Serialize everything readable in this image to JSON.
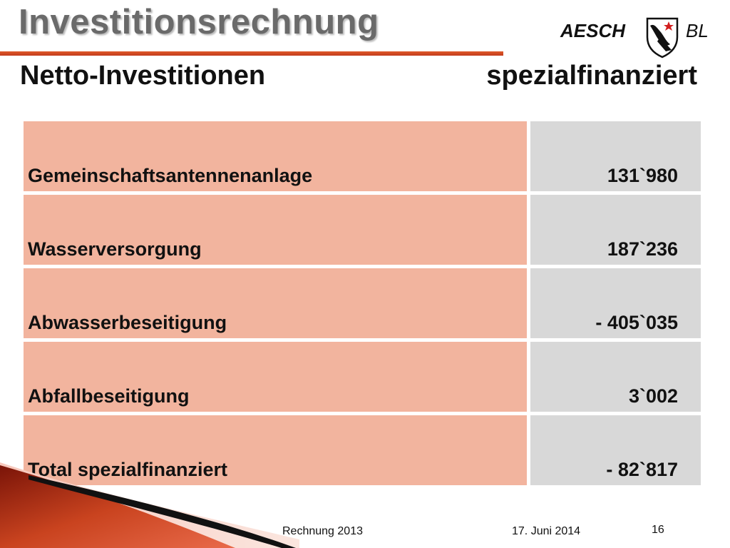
{
  "title": "Investitionsrechnung",
  "logo": {
    "left_text": "AESCH",
    "right_text": "BL",
    "shield_icon": "coat-of-arms-icon"
  },
  "subtitle": {
    "left": "Netto-Investitionen",
    "right": "spezialfinanziert"
  },
  "colors": {
    "title_rule": "#c9431f",
    "label_cell": "#f2b49e",
    "value_cell": "#d8d8d8",
    "title_text": "#6a6a6a"
  },
  "table": {
    "rows": [
      {
        "label": "Gemeinschaftsantennenanlage",
        "value": "131`980"
      },
      {
        "label": "Wasserversorgung",
        "value": "187`236"
      },
      {
        "label": "Abwasserbeseitigung",
        "value": "- 405`035"
      },
      {
        "label": "Abfallbeseitigung",
        "value": "3`002"
      },
      {
        "label": "Total spezialfinanziert",
        "value": "- 82`817"
      }
    ]
  },
  "footer": {
    "left": "Rechnung 2013",
    "date": "17. Juni 2014",
    "page": "16"
  }
}
